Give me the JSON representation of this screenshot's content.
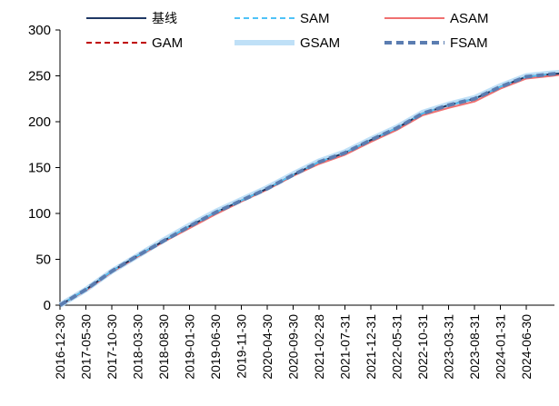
{
  "chart_data": {
    "type": "line",
    "title": "",
    "xlabel": "",
    "ylabel": "",
    "ylim": [
      0,
      300
    ],
    "yticks": [
      0,
      50,
      100,
      150,
      200,
      250,
      300
    ],
    "x_tick_labels": [
      "2016-12-30",
      "2017-05-30",
      "2017-10-30",
      "2018-03-30",
      "2018-08-30",
      "2019-01-30",
      "2019-06-30",
      "2019-11-30",
      "2020-04-30",
      "2020-09-30",
      "2021-02-28",
      "2021-07-31",
      "2021-12-31",
      "2022-05-31",
      "2022-10-31",
      "2023-03-31",
      "2023-08-31",
      "2024-01-31",
      "2024-06-30"
    ],
    "x_index_max": 19.5,
    "legend_position": "top",
    "series": [
      {
        "name": "基线",
        "color": "#1f3864",
        "style": "solid",
        "x": [
          0,
          1,
          2,
          3,
          4,
          5,
          6,
          7,
          8,
          9,
          10,
          11,
          12,
          13,
          14,
          15,
          16,
          17,
          18,
          19,
          19.5
        ],
        "values": [
          0,
          17,
          37,
          54,
          70,
          86,
          101,
          114,
          127,
          142,
          156,
          166,
          180,
          193,
          209,
          218,
          225,
          238,
          249,
          252,
          253
        ]
      },
      {
        "name": "SAM",
        "color": "#4fc3f7",
        "style": "dash",
        "x": [
          0,
          1,
          2,
          3,
          4,
          5,
          6,
          7,
          8,
          9,
          10,
          11,
          12,
          13,
          14,
          15,
          16,
          17,
          18,
          19,
          19.5
        ],
        "values": [
          0,
          17,
          37,
          54,
          70,
          86,
          101,
          114,
          127,
          142,
          156,
          166,
          180,
          193,
          209,
          218,
          225,
          238,
          249,
          252,
          253
        ]
      },
      {
        "name": "ASAM",
        "color": "#f07070",
        "style": "solid",
        "x": [
          0,
          1,
          2,
          3,
          4,
          5,
          6,
          7,
          8,
          9,
          10,
          11,
          12,
          13,
          14,
          15,
          16,
          17,
          18,
          19,
          19.5
        ],
        "values": [
          0,
          16,
          36,
          53,
          69,
          84,
          99,
          113,
          126,
          141,
          154,
          164,
          178,
          191,
          207,
          215,
          222,
          236,
          247,
          250,
          252
        ]
      },
      {
        "name": "GAM",
        "color": "#c00000",
        "style": "dash",
        "x": [
          0,
          1,
          2,
          3,
          4,
          5,
          6,
          7,
          8,
          9,
          10,
          11,
          12,
          13,
          14,
          15,
          16,
          17,
          18,
          19,
          19.5
        ],
        "values": [
          0,
          17,
          37,
          54,
          70,
          86,
          101,
          114,
          127,
          142,
          156,
          166,
          180,
          193,
          209,
          218,
          225,
          238,
          249,
          252,
          253
        ]
      },
      {
        "name": "GSAM",
        "color": "#bfe0f7",
        "style": "thick",
        "x": [
          0,
          1,
          2,
          3,
          4,
          5,
          6,
          7,
          8,
          9,
          10,
          11,
          12,
          13,
          14,
          15,
          16,
          17,
          18,
          19,
          19.5
        ],
        "values": [
          0,
          17,
          37,
          54,
          71,
          87,
          102,
          115,
          128,
          143,
          157,
          167,
          181,
          194,
          210,
          219,
          226,
          239,
          250,
          253,
          254
        ]
      },
      {
        "name": "FSAM",
        "color": "#5b7db1",
        "style": "thickdash",
        "x": [
          0,
          1,
          2,
          3,
          4,
          5,
          6,
          7,
          8,
          9,
          10,
          11,
          12,
          13,
          14,
          15,
          16,
          17,
          18,
          19,
          19.5
        ],
        "values": [
          0,
          17,
          37,
          54,
          70,
          86,
          101,
          114,
          127,
          142,
          156,
          166,
          180,
          193,
          209,
          218,
          225,
          238,
          249,
          252,
          253
        ]
      }
    ]
  }
}
